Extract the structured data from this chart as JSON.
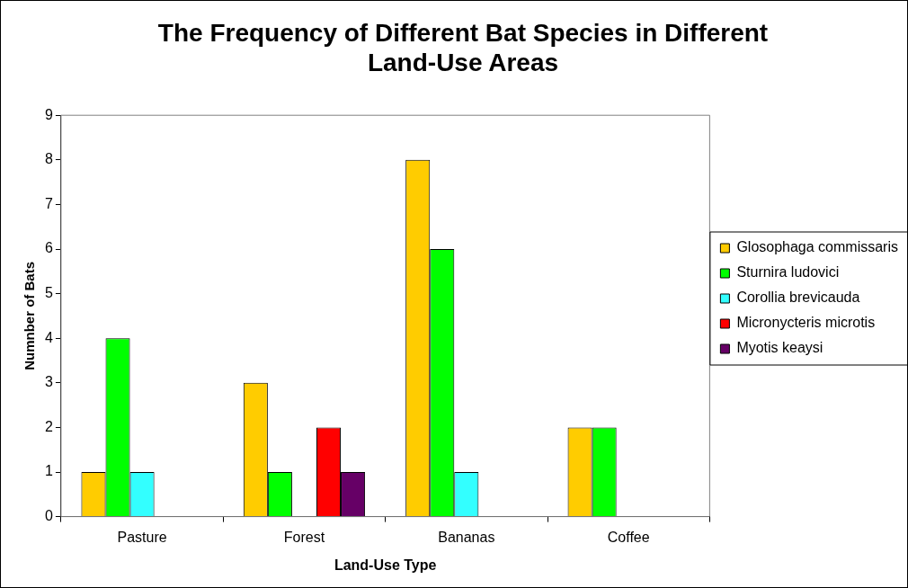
{
  "chart_data": {
    "type": "bar",
    "title": "The Frequency of Different Bat Species in Different Land-Use Areas",
    "xlabel": "Land-Use Type",
    "ylabel": "Numnber of Bats",
    "categories": [
      "Pasture",
      "Forest",
      "Bananas",
      "Coffee"
    ],
    "series": [
      {
        "name": "Glosophaga commissaris",
        "color": "#ffcc00",
        "values": [
          1,
          3,
          8,
          2
        ]
      },
      {
        "name": "Sturnira ludovici",
        "color": "#00ff00",
        "values": [
          4,
          1,
          6,
          2
        ]
      },
      {
        "name": "Corollia brevicauda",
        "color": "#33ffff",
        "values": [
          1,
          0,
          1,
          0
        ]
      },
      {
        "name": "Micronycteris microtis",
        "color": "#ff0000",
        "values": [
          0,
          2,
          0,
          0
        ]
      },
      {
        "name": "Myotis keaysi",
        "color": "#660066",
        "values": [
          0,
          1,
          0,
          0
        ]
      }
    ],
    "ylim": [
      0,
      9
    ],
    "yticks": [
      0,
      1,
      2,
      3,
      4,
      5,
      6,
      7,
      8,
      9
    ],
    "grid": false,
    "legend": "right"
  }
}
